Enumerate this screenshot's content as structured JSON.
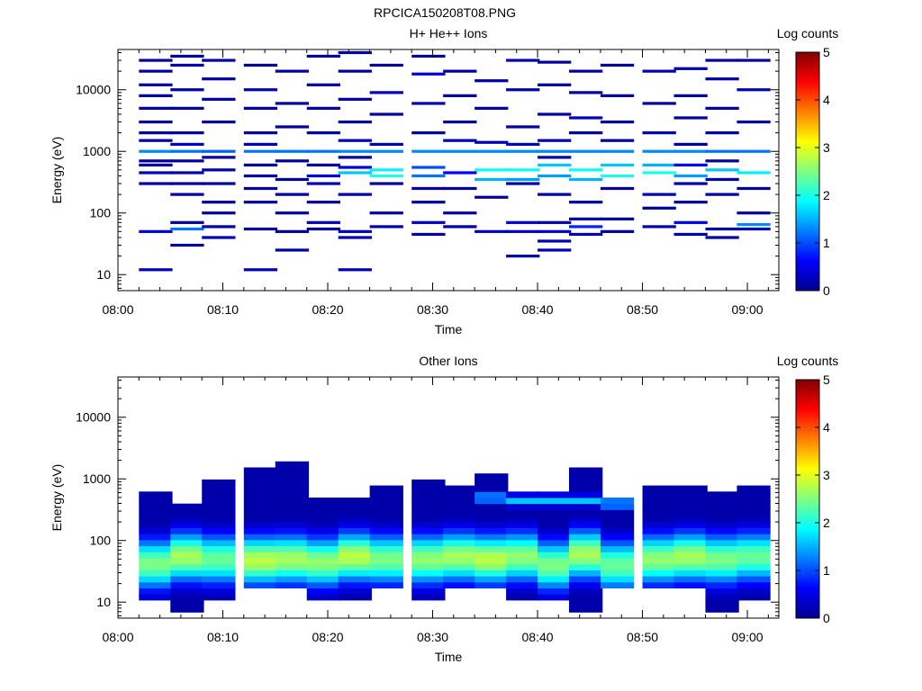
{
  "title": "RPCICA150208T08.PNG",
  "colormap": [
    "#00008f",
    "#0000ff",
    "#0080ff",
    "#00ffff",
    "#80ff80",
    "#ffff00",
    "#ff8000",
    "#ff0000",
    "#800000"
  ],
  "chart_data": [
    {
      "type": "heatmap",
      "title": "H+ He++ Ions",
      "xlabel": "Time",
      "ylabel": "Energy (eV)",
      "yscale": "log",
      "xlim": [
        "08:00",
        "09:03"
      ],
      "ylim": [
        5.5,
        45000
      ],
      "xticks": [
        "08:00",
        "08:10",
        "08:20",
        "08:30",
        "08:40",
        "08:50",
        "09:00"
      ],
      "yticks": [
        "10",
        "100",
        "1000",
        "10000"
      ],
      "colorbar": {
        "label": "Log counts",
        "range": [
          0,
          5
        ],
        "ticks": [
          "0",
          "1",
          "2",
          "3",
          "4",
          "5"
        ]
      },
      "time_bins_start": [
        "08:02",
        "08:05",
        "08:08",
        "08:12",
        "08:15",
        "08:18",
        "08:21",
        "08:24",
        "08:28",
        "08:31",
        "08:34",
        "08:37",
        "08:40",
        "08:43",
        "08:46",
        "08:50",
        "08:53",
        "08:56",
        "08:59"
      ],
      "bin_width_min": 3.2,
      "log_counts_columns": [
        [
          [
            12,
            0.2
          ],
          [
            50,
            0.4
          ],
          [
            300,
            0.1
          ],
          [
            450,
            0.2
          ],
          [
            600,
            0.1
          ],
          [
            700,
            0.1
          ],
          [
            1000,
            1.3
          ],
          [
            1500,
            0.1
          ],
          [
            2000,
            0.1
          ],
          [
            3000,
            0.1
          ],
          [
            5000,
            0.1
          ],
          [
            8000,
            0.1
          ],
          [
            12000,
            0.1
          ],
          [
            20000,
            0.1
          ],
          [
            30000,
            0.1
          ]
        ],
        [
          [
            30,
            0.1
          ],
          [
            55,
            1.2
          ],
          [
            70,
            0.1
          ],
          [
            200,
            0.1
          ],
          [
            300,
            0.1
          ],
          [
            450,
            0.2
          ],
          [
            700,
            0.1
          ],
          [
            1000,
            1.2
          ],
          [
            1300,
            0.3
          ],
          [
            2000,
            0.1
          ],
          [
            5000,
            0.1
          ],
          [
            10000,
            0.1
          ],
          [
            25000,
            0.2
          ],
          [
            35000,
            0.1
          ]
        ],
        [
          [
            40,
            0.2
          ],
          [
            60,
            0.1
          ],
          [
            100,
            0.1
          ],
          [
            150,
            0.1
          ],
          [
            300,
            0.1
          ],
          [
            500,
            0.2
          ],
          [
            800,
            0.1
          ],
          [
            1000,
            1.1
          ],
          [
            3000,
            0.1
          ],
          [
            7000,
            0.1
          ],
          [
            15000,
            0.1
          ],
          [
            30000,
            0.1
          ]
        ],
        [
          [
            12,
            0.2
          ],
          [
            55,
            0.1
          ],
          [
            150,
            0.1
          ],
          [
            250,
            0.1
          ],
          [
            400,
            0.2
          ],
          [
            600,
            0.1
          ],
          [
            1000,
            1.2
          ],
          [
            1300,
            0.2
          ],
          [
            2000,
            0.1
          ],
          [
            5000,
            0.1
          ],
          [
            10000,
            0.2
          ],
          [
            25000,
            0.1
          ]
        ],
        [
          [
            25,
            0.1
          ],
          [
            50,
            0.1
          ],
          [
            100,
            0.1
          ],
          [
            200,
            0.1
          ],
          [
            350,
            0.1
          ],
          [
            700,
            0.1
          ],
          [
            1000,
            1.2
          ],
          [
            2500,
            0.1
          ],
          [
            6000,
            0.1
          ],
          [
            20000,
            0.1
          ]
        ],
        [
          [
            55,
            0.1
          ],
          [
            70,
            0.3
          ],
          [
            150,
            0.1
          ],
          [
            300,
            0.2
          ],
          [
            400,
            0.5
          ],
          [
            600,
            0.1
          ],
          [
            1000,
            1.2
          ],
          [
            2000,
            0.1
          ],
          [
            5000,
            0.1
          ],
          [
            12000,
            0.1
          ],
          [
            35000,
            0.1
          ]
        ],
        [
          [
            12,
            0.2
          ],
          [
            40,
            0.2
          ],
          [
            50,
            0.3
          ],
          [
            200,
            0.1
          ],
          [
            450,
            1.6
          ],
          [
            550,
            0.4
          ],
          [
            800,
            0.1
          ],
          [
            1000,
            1.3
          ],
          [
            1500,
            0.2
          ],
          [
            3000,
            0.1
          ],
          [
            7000,
            0.1
          ],
          [
            20000,
            0.1
          ],
          [
            40000,
            0.1
          ]
        ],
        [
          [
            60,
            0.2
          ],
          [
            100,
            0.1
          ],
          [
            300,
            0.1
          ],
          [
            400,
            2.0
          ],
          [
            500,
            1.8
          ],
          [
            1000,
            1.3
          ],
          [
            1300,
            0.2
          ],
          [
            4000,
            0.1
          ],
          [
            9000,
            0.3
          ],
          [
            25000,
            0.1
          ]
        ],
        [
          [
            45,
            0.1
          ],
          [
            70,
            0.3
          ],
          [
            150,
            0.1
          ],
          [
            250,
            0.1
          ],
          [
            400,
            1.2
          ],
          [
            550,
            1.0
          ],
          [
            1000,
            1.3
          ],
          [
            2000,
            0.1
          ],
          [
            6000,
            0.2
          ],
          [
            18000,
            0.4
          ],
          [
            35000,
            0.1
          ]
        ],
        [
          [
            60,
            0.1
          ],
          [
            100,
            0.1
          ],
          [
            250,
            0.1
          ],
          [
            450,
            0.6
          ],
          [
            1000,
            1.3
          ],
          [
            1500,
            0.2
          ],
          [
            3000,
            0.1
          ],
          [
            8000,
            0.1
          ],
          [
            20000,
            0.1
          ]
        ],
        [
          [
            50,
            0.3
          ],
          [
            180,
            0.1
          ],
          [
            350,
            1.5
          ],
          [
            500,
            1.9
          ],
          [
            1000,
            1.3
          ],
          [
            1400,
            0.2
          ],
          [
            5000,
            0.1
          ],
          [
            14000,
            0.1
          ]
        ],
        [
          [
            20,
            0.2
          ],
          [
            50,
            0.3
          ],
          [
            70,
            0.4
          ],
          [
            300,
            0.1
          ],
          [
            350,
            1.4
          ],
          [
            500,
            1.9
          ],
          [
            1000,
            1.3
          ],
          [
            1300,
            0.2
          ],
          [
            2500,
            0.1
          ],
          [
            10000,
            0.1
          ],
          [
            30000,
            0.2
          ]
        ],
        [
          [
            25,
            0.2
          ],
          [
            35,
            0.2
          ],
          [
            50,
            0.4
          ],
          [
            70,
            0.2
          ],
          [
            200,
            0.1
          ],
          [
            400,
            1.4
          ],
          [
            600,
            1.6
          ],
          [
            800,
            0.2
          ],
          [
            1000,
            1.3
          ],
          [
            1500,
            0.2
          ],
          [
            4000,
            0.1
          ],
          [
            12000,
            0.1
          ],
          [
            28000,
            0.1
          ]
        ],
        [
          [
            45,
            0.2
          ],
          [
            60,
            0.8
          ],
          [
            80,
            0.2
          ],
          [
            150,
            0.1
          ],
          [
            350,
            1.5
          ],
          [
            500,
            1.9
          ],
          [
            1000,
            1.3
          ],
          [
            2000,
            0.1
          ],
          [
            3500,
            0.3
          ],
          [
            9000,
            0.1
          ],
          [
            20000,
            0.1
          ]
        ],
        [
          [
            50,
            0.1
          ],
          [
            80,
            0.1
          ],
          [
            250,
            0.1
          ],
          [
            400,
            2.0
          ],
          [
            600,
            1.6
          ],
          [
            1000,
            1.3
          ],
          [
            1500,
            0.1
          ],
          [
            3000,
            0.1
          ],
          [
            8000,
            0.1
          ],
          [
            25000,
            0.1
          ]
        ],
        [
          [
            60,
            0.2
          ],
          [
            120,
            0.1
          ],
          [
            200,
            0.2
          ],
          [
            450,
            2.0
          ],
          [
            600,
            1.5
          ],
          [
            1000,
            1.3
          ],
          [
            2000,
            0.2
          ],
          [
            6000,
            0.1
          ],
          [
            20000,
            0.2
          ]
        ],
        [
          [
            45,
            0.2
          ],
          [
            70,
            0.5
          ],
          [
            150,
            0.1
          ],
          [
            300,
            0.1
          ],
          [
            400,
            1.4
          ],
          [
            600,
            0.6
          ],
          [
            1000,
            1.3
          ],
          [
            1300,
            0.1
          ],
          [
            3500,
            0.1
          ],
          [
            8000,
            0.1
          ],
          [
            22000,
            0.2
          ]
        ],
        [
          [
            40,
            0.1
          ],
          [
            55,
            0.2
          ],
          [
            200,
            0.1
          ],
          [
            350,
            0.2
          ],
          [
            500,
            1.6
          ],
          [
            700,
            0.1
          ],
          [
            1000,
            1.2
          ],
          [
            2000,
            0.1
          ],
          [
            5000,
            0.1
          ],
          [
            15000,
            0.1
          ],
          [
            30000,
            0.1
          ]
        ],
        [
          [
            55,
            0.3
          ],
          [
            65,
            1.3
          ],
          [
            100,
            0.1
          ],
          [
            250,
            0.1
          ],
          [
            450,
            1.8
          ],
          [
            1000,
            1.2
          ],
          [
            3000,
            0.1
          ],
          [
            10000,
            0.2
          ],
          [
            30000,
            0.1
          ]
        ]
      ]
    },
    {
      "type": "heatmap",
      "title": "Other Ions",
      "xlabel": "Time",
      "ylabel": "Energy (eV)",
      "yscale": "log",
      "xlim": [
        "08:00",
        "09:03"
      ],
      "ylim": [
        5.5,
        45000
      ],
      "xticks": [
        "08:00",
        "08:10",
        "08:20",
        "08:30",
        "08:40",
        "08:50",
        "09:00"
      ],
      "yticks": [
        "10",
        "100",
        "1000",
        "10000"
      ],
      "colorbar": {
        "label": "Log counts",
        "range": [
          0,
          5
        ],
        "ticks": [
          "0",
          "1",
          "2",
          "3",
          "4",
          "5"
        ]
      },
      "time_bins_start": [
        "08:02",
        "08:05",
        "08:08",
        "08:12",
        "08:15",
        "08:18",
        "08:21",
        "08:24",
        "08:28",
        "08:31",
        "08:34",
        "08:37",
        "08:40",
        "08:43",
        "08:46",
        "08:50",
        "08:53",
        "08:56",
        "08:59"
      ],
      "bin_width_min": 3.2,
      "profiles": [
        {
          "peak": 42,
          "amp": 2.5,
          "top": 650,
          "bottom": 12,
          "peak_high": 0
        },
        {
          "peak": 55,
          "amp": 2.7,
          "top": 400,
          "bottom": 7,
          "peak_high": 0
        },
        {
          "peak": 50,
          "amp": 2.4,
          "top": 900,
          "bottom": 12,
          "peak_high": 0
        },
        {
          "peak": 48,
          "amp": 2.8,
          "top": 1600,
          "bottom": 18,
          "peak_high": 0
        },
        {
          "peak": 50,
          "amp": 2.7,
          "top": 2100,
          "bottom": 18,
          "peak_high": 0
        },
        {
          "peak": 45,
          "amp": 2.6,
          "top": 550,
          "bottom": 12,
          "peak_high": 0
        },
        {
          "peak": 55,
          "amp": 2.8,
          "top": 500,
          "bottom": 12,
          "peak_high": 0
        },
        {
          "peak": 50,
          "amp": 2.5,
          "top": 850,
          "bottom": 18,
          "peak_high": 0
        },
        {
          "peak": 50,
          "amp": 2.6,
          "top": 900,
          "bottom": 12,
          "peak_high": 0
        },
        {
          "peak": 55,
          "amp": 2.7,
          "top": 800,
          "bottom": 18,
          "peak_high": 0
        },
        {
          "peak": 50,
          "amp": 2.8,
          "top": 1200,
          "bottom": 18,
          "peak_high": 500
        },
        {
          "peak": 55,
          "amp": 2.6,
          "top": 650,
          "bottom": 12,
          "peak_high": 450
        },
        {
          "peak": 40,
          "amp": 2.5,
          "top": 600,
          "bottom": 12,
          "peak_high": 450
        },
        {
          "peak": 60,
          "amp": 2.7,
          "top": 1700,
          "bottom": 7,
          "peak_high": 450
        },
        {
          "peak": 40,
          "amp": 2.4,
          "top": 450,
          "bottom": 18,
          "peak_high": 400
        },
        {
          "peak": 50,
          "amp": 2.6,
          "top": 700,
          "bottom": 18,
          "peak_high": 0
        },
        {
          "peak": 55,
          "amp": 2.7,
          "top": 750,
          "bottom": 18,
          "peak_high": 0
        },
        {
          "peak": 50,
          "amp": 2.5,
          "top": 600,
          "bottom": 7,
          "peak_high": 0
        },
        {
          "peak": 55,
          "amp": 2.4,
          "top": 700,
          "bottom": 12,
          "peak_high": 0
        }
      ]
    }
  ]
}
